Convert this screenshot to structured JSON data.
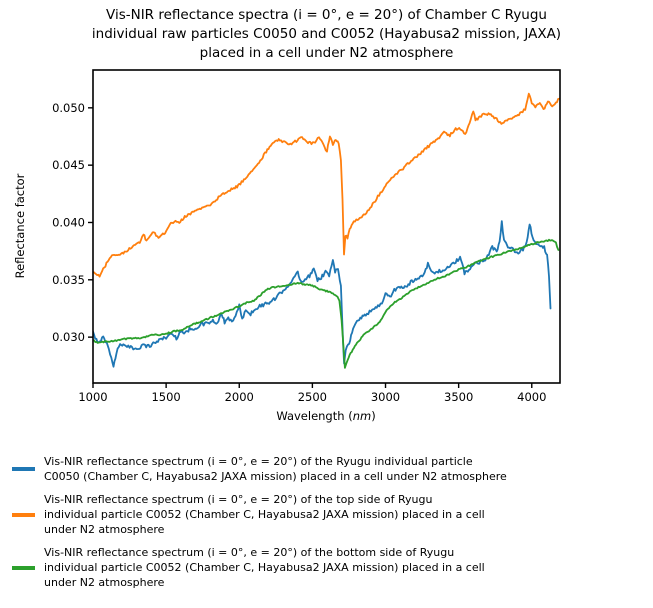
{
  "chart_data": {
    "type": "line",
    "title": "Vis-NIR reflectance spectra (i = 0°, e = 20°) of Chamber C Ryugu individual raw particles C0050 and C0052 (Hayabusa2 mission, JAXA) placed in a cell under N2 atmosphere",
    "title_lines": [
      "Vis-NIR reflectance spectra (i = 0°, e = 20°) of Chamber C Ryugu",
      "individual raw particles C0050 and C0052 (Hayabusa2 mission, JAXA)",
      "placed in a cell under N2 atmosphere"
    ],
    "xlabel_prefix": "Wavelength (",
    "xlabel_unit": "nm",
    "xlabel_suffix": ")",
    "ylabel": "Reflectance factor",
    "xlim": [
      1000,
      4193
    ],
    "ylim": [
      0.026,
      0.0533
    ],
    "xticks": [
      1000,
      1500,
      2000,
      2500,
      3000,
      3500,
      4000
    ],
    "yticks": [
      0.03,
      0.035,
      0.04,
      0.045,
      0.05
    ],
    "ytick_labels": [
      "0.030",
      "0.035",
      "0.040",
      "0.045",
      "0.050"
    ],
    "grid": false,
    "legend_position": "below",
    "series": [
      {
        "name": "C0050",
        "color": "#1f77b4",
        "noise": 0.00016,
        "points": [
          [
            1000,
            0.0304
          ],
          [
            1015,
            0.0298
          ],
          [
            1040,
            0.0296
          ],
          [
            1070,
            0.03
          ],
          [
            1100,
            0.0293
          ],
          [
            1125,
            0.0283
          ],
          [
            1140,
            0.0274
          ],
          [
            1160,
            0.0286
          ],
          [
            1185,
            0.0295
          ],
          [
            1215,
            0.0292
          ],
          [
            1250,
            0.0291
          ],
          [
            1300,
            0.029
          ],
          [
            1340,
            0.0293
          ],
          [
            1380,
            0.0292
          ],
          [
            1420,
            0.0295
          ],
          [
            1460,
            0.0298
          ],
          [
            1500,
            0.03
          ],
          [
            1540,
            0.0303
          ],
          [
            1570,
            0.0299
          ],
          [
            1600,
            0.0306
          ],
          [
            1630,
            0.0303
          ],
          [
            1660,
            0.0307
          ],
          [
            1700,
            0.0308
          ],
          [
            1740,
            0.0311
          ],
          [
            1780,
            0.0312
          ],
          [
            1820,
            0.0314
          ],
          [
            1850,
            0.0311
          ],
          [
            1880,
            0.0321
          ],
          [
            1900,
            0.0312
          ],
          [
            1925,
            0.0318
          ],
          [
            1950,
            0.0312
          ],
          [
            1975,
            0.0319
          ],
          [
            2000,
            0.0327
          ],
          [
            2020,
            0.0317
          ],
          [
            2045,
            0.0323
          ],
          [
            2070,
            0.0319
          ],
          [
            2100,
            0.0324
          ],
          [
            2140,
            0.0327
          ],
          [
            2180,
            0.0329
          ],
          [
            2220,
            0.0331
          ],
          [
            2260,
            0.0335
          ],
          [
            2300,
            0.0341
          ],
          [
            2340,
            0.0346
          ],
          [
            2380,
            0.0352
          ],
          [
            2400,
            0.0357
          ],
          [
            2420,
            0.0348
          ],
          [
            2450,
            0.0351
          ],
          [
            2480,
            0.0353
          ],
          [
            2510,
            0.0361
          ],
          [
            2535,
            0.035
          ],
          [
            2560,
            0.0352
          ],
          [
            2590,
            0.0357
          ],
          [
            2615,
            0.0354
          ],
          [
            2640,
            0.0366
          ],
          [
            2655,
            0.0357
          ],
          [
            2675,
            0.0361
          ],
          [
            2695,
            0.0345
          ],
          [
            2705,
            0.031
          ],
          [
            2717,
            0.0278
          ],
          [
            2728,
            0.029
          ],
          [
            2745,
            0.0293
          ],
          [
            2765,
            0.0301
          ],
          [
            2785,
            0.0309
          ],
          [
            2805,
            0.0314
          ],
          [
            2835,
            0.0317
          ],
          [
            2865,
            0.032
          ],
          [
            2900,
            0.0323
          ],
          [
            2940,
            0.0326
          ],
          [
            2975,
            0.033
          ],
          [
            3000,
            0.0338
          ],
          [
            3030,
            0.0335
          ],
          [
            3060,
            0.0341
          ],
          [
            3100,
            0.0344
          ],
          [
            3140,
            0.0343
          ],
          [
            3180,
            0.0349
          ],
          [
            3220,
            0.0351
          ],
          [
            3260,
            0.0355
          ],
          [
            3290,
            0.0364
          ],
          [
            3320,
            0.0356
          ],
          [
            3360,
            0.0357
          ],
          [
            3400,
            0.0359
          ],
          [
            3440,
            0.0361
          ],
          [
            3480,
            0.0366
          ],
          [
            3510,
            0.0369
          ],
          [
            3540,
            0.0356
          ],
          [
            3570,
            0.0359
          ],
          [
            3610,
            0.0364
          ],
          [
            3650,
            0.0366
          ],
          [
            3690,
            0.0369
          ],
          [
            3730,
            0.0379
          ],
          [
            3760,
            0.0374
          ],
          [
            3780,
            0.0383
          ],
          [
            3795,
            0.04
          ],
          [
            3810,
            0.0385
          ],
          [
            3830,
            0.0379
          ],
          [
            3860,
            0.0377
          ],
          [
            3900,
            0.0374
          ],
          [
            3940,
            0.0376
          ],
          [
            3965,
            0.0383
          ],
          [
            3985,
            0.0399
          ],
          [
            4005,
            0.0386
          ],
          [
            4030,
            0.0381
          ],
          [
            4060,
            0.038
          ],
          [
            4085,
            0.0378
          ],
          [
            4105,
            0.0372
          ],
          [
            4118,
            0.0352
          ],
          [
            4128,
            0.0325
          ]
        ]
      },
      {
        "name": "C0052 top side",
        "color": "#ff7f0e",
        "noise": 0.00011,
        "points": [
          [
            1000,
            0.0357
          ],
          [
            1020,
            0.0354
          ],
          [
            1045,
            0.0353
          ],
          [
            1070,
            0.0359
          ],
          [
            1100,
            0.0366
          ],
          [
            1130,
            0.0371
          ],
          [
            1160,
            0.0372
          ],
          [
            1200,
            0.0373
          ],
          [
            1240,
            0.0376
          ],
          [
            1280,
            0.038
          ],
          [
            1320,
            0.0382
          ],
          [
            1345,
            0.039
          ],
          [
            1365,
            0.0384
          ],
          [
            1390,
            0.0389
          ],
          [
            1415,
            0.0392
          ],
          [
            1440,
            0.0387
          ],
          [
            1470,
            0.0389
          ],
          [
            1500,
            0.0392
          ],
          [
            1525,
            0.0399
          ],
          [
            1555,
            0.0401
          ],
          [
            1590,
            0.04
          ],
          [
            1620,
            0.0404
          ],
          [
            1650,
            0.0407
          ],
          [
            1690,
            0.0409
          ],
          [
            1730,
            0.0412
          ],
          [
            1770,
            0.0414
          ],
          [
            1810,
            0.0416
          ],
          [
            1850,
            0.0421
          ],
          [
            1890,
            0.0425
          ],
          [
            1930,
            0.0428
          ],
          [
            1970,
            0.043
          ],
          [
            2000,
            0.0433
          ],
          [
            2040,
            0.0438
          ],
          [
            2080,
            0.0444
          ],
          [
            2120,
            0.0449
          ],
          [
            2160,
            0.0457
          ],
          [
            2200,
            0.0465
          ],
          [
            2230,
            0.047
          ],
          [
            2270,
            0.0472
          ],
          [
            2310,
            0.047
          ],
          [
            2350,
            0.0468
          ],
          [
            2390,
            0.0471
          ],
          [
            2430,
            0.0474
          ],
          [
            2470,
            0.047
          ],
          [
            2510,
            0.0469
          ],
          [
            2545,
            0.0474
          ],
          [
            2575,
            0.0468
          ],
          [
            2600,
            0.0462
          ],
          [
            2620,
            0.0476
          ],
          [
            2640,
            0.0468
          ],
          [
            2660,
            0.0473
          ],
          [
            2680,
            0.0469
          ],
          [
            2695,
            0.0455
          ],
          [
            2706,
            0.042
          ],
          [
            2716,
            0.0373
          ],
          [
            2726,
            0.0388
          ],
          [
            2740,
            0.0387
          ],
          [
            2755,
            0.0395
          ],
          [
            2775,
            0.0399
          ],
          [
            2800,
            0.0402
          ],
          [
            2830,
            0.0404
          ],
          [
            2860,
            0.0407
          ],
          [
            2895,
            0.0413
          ],
          [
            2930,
            0.0419
          ],
          [
            2965,
            0.0426
          ],
          [
            3000,
            0.0432
          ],
          [
            3040,
            0.0438
          ],
          [
            3080,
            0.0443
          ],
          [
            3120,
            0.0447
          ],
          [
            3160,
            0.0452
          ],
          [
            3200,
            0.0457
          ],
          [
            3240,
            0.046
          ],
          [
            3280,
            0.0465
          ],
          [
            3320,
            0.0469
          ],
          [
            3360,
            0.0473
          ],
          [
            3400,
            0.0479
          ],
          [
            3440,
            0.0476
          ],
          [
            3480,
            0.0482
          ],
          [
            3520,
            0.0481
          ],
          [
            3545,
            0.0477
          ],
          [
            3575,
            0.0487
          ],
          [
            3600,
            0.0497
          ],
          [
            3615,
            0.0489
          ],
          [
            3645,
            0.0492
          ],
          [
            3680,
            0.0495
          ],
          [
            3720,
            0.0494
          ],
          [
            3760,
            0.049
          ],
          [
            3800,
            0.0486
          ],
          [
            3840,
            0.049
          ],
          [
            3880,
            0.0492
          ],
          [
            3920,
            0.0495
          ],
          [
            3955,
            0.0499
          ],
          [
            3980,
            0.0512
          ],
          [
            4000,
            0.0504
          ],
          [
            4025,
            0.05
          ],
          [
            4055,
            0.0505
          ],
          [
            4080,
            0.0498
          ],
          [
            4110,
            0.0505
          ],
          [
            4140,
            0.0502
          ],
          [
            4165,
            0.0504
          ],
          [
            4188,
            0.0508
          ]
        ]
      },
      {
        "name": "C0052 bottom side",
        "color": "#2ca02c",
        "noise": 6e-05,
        "points": [
          [
            1000,
            0.0297
          ],
          [
            1040,
            0.0295
          ],
          [
            1080,
            0.0296
          ],
          [
            1120,
            0.0296
          ],
          [
            1160,
            0.0297
          ],
          [
            1200,
            0.0298
          ],
          [
            1250,
            0.0299
          ],
          [
            1300,
            0.0299
          ],
          [
            1350,
            0.03
          ],
          [
            1400,
            0.0302
          ],
          [
            1450,
            0.0302
          ],
          [
            1500,
            0.0303
          ],
          [
            1550,
            0.0305
          ],
          [
            1600,
            0.0306
          ],
          [
            1650,
            0.0309
          ],
          [
            1700,
            0.0312
          ],
          [
            1750,
            0.0314
          ],
          [
            1800,
            0.0317
          ],
          [
            1850,
            0.0319
          ],
          [
            1900,
            0.0322
          ],
          [
            1950,
            0.0324
          ],
          [
            2000,
            0.0327
          ],
          [
            2050,
            0.033
          ],
          [
            2100,
            0.0332
          ],
          [
            2140,
            0.0336
          ],
          [
            2180,
            0.0341
          ],
          [
            2220,
            0.0343
          ],
          [
            2260,
            0.0344
          ],
          [
            2300,
            0.0345
          ],
          [
            2350,
            0.0346
          ],
          [
            2400,
            0.0347
          ],
          [
            2450,
            0.0346
          ],
          [
            2500,
            0.0345
          ],
          [
            2550,
            0.0342
          ],
          [
            2600,
            0.034
          ],
          [
            2640,
            0.0338
          ],
          [
            2665,
            0.0336
          ],
          [
            2685,
            0.0332
          ],
          [
            2700,
            0.0315
          ],
          [
            2722,
            0.0273
          ],
          [
            2740,
            0.028
          ],
          [
            2762,
            0.0286
          ],
          [
            2790,
            0.0292
          ],
          [
            2820,
            0.0297
          ],
          [
            2850,
            0.0302
          ],
          [
            2885,
            0.0305
          ],
          [
            2920,
            0.0309
          ],
          [
            2960,
            0.0313
          ],
          [
            3000,
            0.0322
          ],
          [
            3040,
            0.0328
          ],
          [
            3080,
            0.0332
          ],
          [
            3120,
            0.0335
          ],
          [
            3160,
            0.0339
          ],
          [
            3200,
            0.0342
          ],
          [
            3250,
            0.0345
          ],
          [
            3300,
            0.0348
          ],
          [
            3350,
            0.0351
          ],
          [
            3400,
            0.0353
          ],
          [
            3450,
            0.0356
          ],
          [
            3500,
            0.0359
          ],
          [
            3550,
            0.0361
          ],
          [
            3600,
            0.0364
          ],
          [
            3650,
            0.0367
          ],
          [
            3700,
            0.0369
          ],
          [
            3750,
            0.0371
          ],
          [
            3800,
            0.0373
          ],
          [
            3850,
            0.0375
          ],
          [
            3900,
            0.0377
          ],
          [
            3950,
            0.0379
          ],
          [
            4000,
            0.0381
          ],
          [
            4050,
            0.0383
          ],
          [
            4100,
            0.0384
          ],
          [
            4135,
            0.0385
          ],
          [
            4165,
            0.0382
          ],
          [
            4182,
            0.0376
          ]
        ]
      }
    ],
    "legend": {
      "entries": [
        {
          "color": "#1f77b4",
          "lines": [
            "Vis-NIR reflectance spectrum (i = 0°, e = 20°) of the Ryugu individual particle",
            "C0050 (Chamber C, Hayabusa2 JAXA mission) placed in a cell under N2 atmosphere"
          ]
        },
        {
          "color": "#ff7f0e",
          "lines": [
            "Vis-NIR reflectance spectrum (i = 0°, e = 20°) of the top side of Ryugu",
            "individual particle C0052 (Chamber C, Hayabusa2 JAXA mission) placed in a cell",
            "under N2 atmosphere"
          ]
        },
        {
          "color": "#2ca02c",
          "lines": [
            "Vis-NIR reflectance spectrum (i = 0°, e = 20°) of the bottom side of Ryugu",
            "individual particle C0052 (Chamber C, Hayabusa2 JAXA mission) placed in a cell",
            "under N2 atmosphere"
          ]
        }
      ]
    }
  }
}
